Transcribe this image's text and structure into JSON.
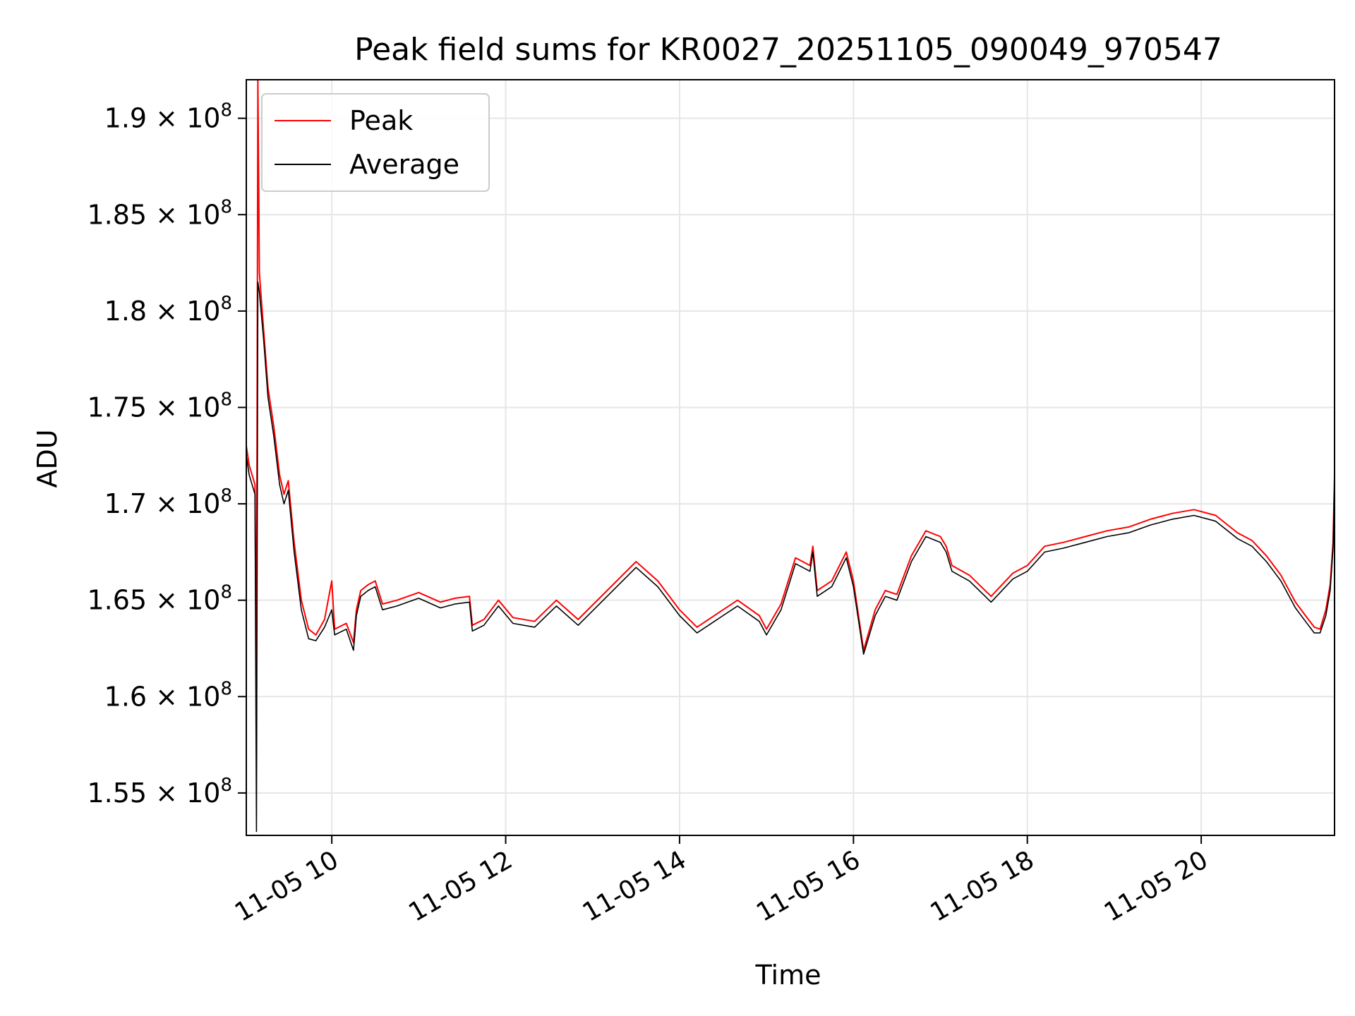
{
  "chart_data": {
    "type": "line",
    "title": "Peak field sums for KR0027_20251105_090049_970547",
    "xlabel": "Time",
    "ylabel": "ADU",
    "xlim": [
      "2025-11-05 09:01",
      "2025-11-05 21:32"
    ],
    "ylim": [
      152800000,
      192000000
    ],
    "grid": true,
    "legend_position": "top-left",
    "x_ticks": [
      {
        "value": "2025-11-05 10:00",
        "label": "11-05 10"
      },
      {
        "value": "2025-11-05 12:00",
        "label": "11-05 12"
      },
      {
        "value": "2025-11-05 14:00",
        "label": "11-05 14"
      },
      {
        "value": "2025-11-05 16:00",
        "label": "11-05 16"
      },
      {
        "value": "2025-11-05 18:00",
        "label": "11-05 18"
      },
      {
        "value": "2025-11-05 20:00",
        "label": "11-05 20"
      }
    ],
    "y_ticks": [
      {
        "value": 155000000,
        "mantissa": "1.55",
        "exponent": "8"
      },
      {
        "value": 160000000,
        "mantissa": "1.6",
        "exponent": "8"
      },
      {
        "value": 165000000,
        "mantissa": "1.65",
        "exponent": "8"
      },
      {
        "value": 170000000,
        "mantissa": "1.7",
        "exponent": "8"
      },
      {
        "value": 175000000,
        "mantissa": "1.75",
        "exponent": "8"
      },
      {
        "value": 180000000,
        "mantissa": "1.8",
        "exponent": "8"
      },
      {
        "value": 185000000,
        "mantissa": "1.85",
        "exponent": "8"
      },
      {
        "value": 190000000,
        "mantissa": "1.9",
        "exponent": "8"
      }
    ],
    "tick_times_sign": "×",
    "tick_base": "10",
    "series": [
      {
        "name": "Peak",
        "color": "#ff0000",
        "points": [
          [
            "2025-11-05 09:01",
            173000000
          ],
          [
            "2025-11-05 09:03",
            172000000
          ],
          [
            "2025-11-05 09:05",
            171500000
          ],
          [
            "2025-11-05 09:07",
            171000000
          ],
          [
            "2025-11-05 09:08",
            160000000
          ],
          [
            "2025-11-05 09:09",
            192000000
          ],
          [
            "2025-11-05 09:10",
            182000000
          ],
          [
            "2025-11-05 09:13",
            179000000
          ],
          [
            "2025-11-05 09:16",
            176000000
          ],
          [
            "2025-11-05 09:20",
            174000000
          ],
          [
            "2025-11-05 09:24",
            171500000
          ],
          [
            "2025-11-05 09:27",
            170500000
          ],
          [
            "2025-11-05 09:30",
            171200000
          ],
          [
            "2025-11-05 09:34",
            168000000
          ],
          [
            "2025-11-05 09:39",
            165000000
          ],
          [
            "2025-11-05 09:44",
            163500000
          ],
          [
            "2025-11-05 09:49",
            163200000
          ],
          [
            "2025-11-05 09:55",
            164000000
          ],
          [
            "2025-11-05 10:00",
            166000000
          ],
          [
            "2025-11-05 10:02",
            163500000
          ],
          [
            "2025-11-05 10:10",
            163800000
          ],
          [
            "2025-11-05 10:15",
            162800000
          ],
          [
            "2025-11-05 10:17",
            164500000
          ],
          [
            "2025-11-05 10:20",
            165500000
          ],
          [
            "2025-11-05 10:25",
            165800000
          ],
          [
            "2025-11-05 10:30",
            166000000
          ],
          [
            "2025-11-05 10:35",
            164800000
          ],
          [
            "2025-11-05 10:45",
            165000000
          ],
          [
            "2025-11-05 11:00",
            165400000
          ],
          [
            "2025-11-05 11:15",
            164900000
          ],
          [
            "2025-11-05 11:25",
            165100000
          ],
          [
            "2025-11-05 11:35",
            165200000
          ],
          [
            "2025-11-05 11:37",
            163700000
          ],
          [
            "2025-11-05 11:45",
            164000000
          ],
          [
            "2025-11-05 11:55",
            165000000
          ],
          [
            "2025-11-05 12:05",
            164100000
          ],
          [
            "2025-11-05 12:20",
            163900000
          ],
          [
            "2025-11-05 12:35",
            165000000
          ],
          [
            "2025-11-05 12:50",
            164000000
          ],
          [
            "2025-11-05 13:10",
            165500000
          ],
          [
            "2025-11-05 13:30",
            167000000
          ],
          [
            "2025-11-05 13:45",
            166000000
          ],
          [
            "2025-11-05 14:00",
            164500000
          ],
          [
            "2025-11-05 14:12",
            163600000
          ],
          [
            "2025-11-05 14:30",
            164500000
          ],
          [
            "2025-11-05 14:40",
            165000000
          ],
          [
            "2025-11-05 14:55",
            164200000
          ],
          [
            "2025-11-05 15:00",
            163500000
          ],
          [
            "2025-11-05 15:10",
            164800000
          ],
          [
            "2025-11-05 15:20",
            167200000
          ],
          [
            "2025-11-05 15:30",
            166800000
          ],
          [
            "2025-11-05 15:32",
            167800000
          ],
          [
            "2025-11-05 15:35",
            165500000
          ],
          [
            "2025-11-05 15:45",
            166000000
          ],
          [
            "2025-11-05 15:55",
            167500000
          ],
          [
            "2025-11-05 16:00",
            166000000
          ],
          [
            "2025-11-05 16:07",
            162400000
          ],
          [
            "2025-11-05 16:15",
            164500000
          ],
          [
            "2025-11-05 16:22",
            165500000
          ],
          [
            "2025-11-05 16:30",
            165300000
          ],
          [
            "2025-11-05 16:40",
            167300000
          ],
          [
            "2025-11-05 16:50",
            168600000
          ],
          [
            "2025-11-05 17:00",
            168300000
          ],
          [
            "2025-11-05 17:04",
            167800000
          ],
          [
            "2025-11-05 17:08",
            166800000
          ],
          [
            "2025-11-05 17:20",
            166300000
          ],
          [
            "2025-11-05 17:35",
            165200000
          ],
          [
            "2025-11-05 17:50",
            166400000
          ],
          [
            "2025-11-05 18:00",
            166800000
          ],
          [
            "2025-11-05 18:12",
            167800000
          ],
          [
            "2025-11-05 18:25",
            168000000
          ],
          [
            "2025-11-05 18:40",
            168300000
          ],
          [
            "2025-11-05 18:55",
            168600000
          ],
          [
            "2025-11-05 19:10",
            168800000
          ],
          [
            "2025-11-05 19:25",
            169200000
          ],
          [
            "2025-11-05 19:40",
            169500000
          ],
          [
            "2025-11-05 19:55",
            169700000
          ],
          [
            "2025-11-05 20:10",
            169400000
          ],
          [
            "2025-11-05 20:25",
            168500000
          ],
          [
            "2025-11-05 20:35",
            168100000
          ],
          [
            "2025-11-05 20:45",
            167300000
          ],
          [
            "2025-11-05 20:50",
            166800000
          ],
          [
            "2025-11-05 20:55",
            166300000
          ],
          [
            "2025-11-05 21:00",
            165600000
          ],
          [
            "2025-11-05 21:05",
            164900000
          ],
          [
            "2025-11-05 21:10",
            164400000
          ],
          [
            "2025-11-05 21:14",
            164000000
          ],
          [
            "2025-11-05 21:18",
            163600000
          ],
          [
            "2025-11-05 21:22",
            163500000
          ],
          [
            "2025-11-05 21:26",
            164500000
          ],
          [
            "2025-11-05 21:29",
            165800000
          ],
          [
            "2025-11-05 21:31",
            168000000
          ],
          [
            "2025-11-05 21:32",
            171500000
          ]
        ]
      },
      {
        "name": "Average",
        "color": "#000000",
        "points": [
          [
            "2025-11-05 09:01",
            172500000
          ],
          [
            "2025-11-05 09:03",
            171500000
          ],
          [
            "2025-11-05 09:05",
            171000000
          ],
          [
            "2025-11-05 09:07",
            170500000
          ],
          [
            "2025-11-05 09:08",
            153000000
          ],
          [
            "2025-11-05 09:09",
            181500000
          ],
          [
            "2025-11-05 09:10",
            181000000
          ],
          [
            "2025-11-05 09:13",
            178500000
          ],
          [
            "2025-11-05 09:16",
            175500000
          ],
          [
            "2025-11-05 09:20",
            173500000
          ],
          [
            "2025-11-05 09:24",
            171000000
          ],
          [
            "2025-11-05 09:27",
            170000000
          ],
          [
            "2025-11-05 09:30",
            170700000
          ],
          [
            "2025-11-05 09:34",
            167500000
          ],
          [
            "2025-11-05 09:39",
            164500000
          ],
          [
            "2025-11-05 09:44",
            163000000
          ],
          [
            "2025-11-05 09:49",
            162900000
          ],
          [
            "2025-11-05 09:55",
            163600000
          ],
          [
            "2025-11-05 10:00",
            164500000
          ],
          [
            "2025-11-05 10:02",
            163200000
          ],
          [
            "2025-11-05 10:10",
            163500000
          ],
          [
            "2025-11-05 10:15",
            162400000
          ],
          [
            "2025-11-05 10:17",
            164200000
          ],
          [
            "2025-11-05 10:20",
            165200000
          ],
          [
            "2025-11-05 10:25",
            165500000
          ],
          [
            "2025-11-05 10:30",
            165700000
          ],
          [
            "2025-11-05 10:35",
            164500000
          ],
          [
            "2025-11-05 10:45",
            164700000
          ],
          [
            "2025-11-05 11:00",
            165100000
          ],
          [
            "2025-11-05 11:15",
            164600000
          ],
          [
            "2025-11-05 11:25",
            164800000
          ],
          [
            "2025-11-05 11:35",
            164900000
          ],
          [
            "2025-11-05 11:37",
            163400000
          ],
          [
            "2025-11-05 11:45",
            163700000
          ],
          [
            "2025-11-05 11:55",
            164700000
          ],
          [
            "2025-11-05 12:05",
            163800000
          ],
          [
            "2025-11-05 12:20",
            163600000
          ],
          [
            "2025-11-05 12:35",
            164700000
          ],
          [
            "2025-11-05 12:50",
            163700000
          ],
          [
            "2025-11-05 13:10",
            165200000
          ],
          [
            "2025-11-05 13:30",
            166700000
          ],
          [
            "2025-11-05 13:45",
            165700000
          ],
          [
            "2025-11-05 14:00",
            164200000
          ],
          [
            "2025-11-05 14:12",
            163300000
          ],
          [
            "2025-11-05 14:30",
            164200000
          ],
          [
            "2025-11-05 14:40",
            164700000
          ],
          [
            "2025-11-05 14:55",
            163900000
          ],
          [
            "2025-11-05 15:00",
            163200000
          ],
          [
            "2025-11-05 15:10",
            164500000
          ],
          [
            "2025-11-05 15:20",
            166900000
          ],
          [
            "2025-11-05 15:30",
            166500000
          ],
          [
            "2025-11-05 15:32",
            167500000
          ],
          [
            "2025-11-05 15:35",
            165200000
          ],
          [
            "2025-11-05 15:45",
            165700000
          ],
          [
            "2025-11-05 15:55",
            167200000
          ],
          [
            "2025-11-05 16:00",
            165700000
          ],
          [
            "2025-11-05 16:07",
            162200000
          ],
          [
            "2025-11-05 16:15",
            164200000
          ],
          [
            "2025-11-05 16:22",
            165200000
          ],
          [
            "2025-11-05 16:30",
            165000000
          ],
          [
            "2025-11-05 16:40",
            167000000
          ],
          [
            "2025-11-05 16:50",
            168300000
          ],
          [
            "2025-11-05 17:00",
            168000000
          ],
          [
            "2025-11-05 17:04",
            167500000
          ],
          [
            "2025-11-05 17:08",
            166500000
          ],
          [
            "2025-11-05 17:20",
            166000000
          ],
          [
            "2025-11-05 17:35",
            164900000
          ],
          [
            "2025-11-05 17:50",
            166100000
          ],
          [
            "2025-11-05 18:00",
            166500000
          ],
          [
            "2025-11-05 18:12",
            167500000
          ],
          [
            "2025-11-05 18:25",
            167700000
          ],
          [
            "2025-11-05 18:40",
            168000000
          ],
          [
            "2025-11-05 18:55",
            168300000
          ],
          [
            "2025-11-05 19:10",
            168500000
          ],
          [
            "2025-11-05 19:25",
            168900000
          ],
          [
            "2025-11-05 19:40",
            169200000
          ],
          [
            "2025-11-05 19:55",
            169400000
          ],
          [
            "2025-11-05 20:10",
            169100000
          ],
          [
            "2025-11-05 20:25",
            168200000
          ],
          [
            "2025-11-05 20:35",
            167800000
          ],
          [
            "2025-11-05 20:45",
            167000000
          ],
          [
            "2025-11-05 20:50",
            166500000
          ],
          [
            "2025-11-05 20:55",
            166000000
          ],
          [
            "2025-11-05 21:00",
            165300000
          ],
          [
            "2025-11-05 21:05",
            164600000
          ],
          [
            "2025-11-05 21:10",
            164100000
          ],
          [
            "2025-11-05 21:14",
            163700000
          ],
          [
            "2025-11-05 21:18",
            163300000
          ],
          [
            "2025-11-05 21:22",
            163300000
          ],
          [
            "2025-11-05 21:26",
            164200000
          ],
          [
            "2025-11-05 21:29",
            165500000
          ],
          [
            "2025-11-05 21:31",
            167700000
          ],
          [
            "2025-11-05 21:32",
            171200000
          ]
        ]
      }
    ]
  }
}
